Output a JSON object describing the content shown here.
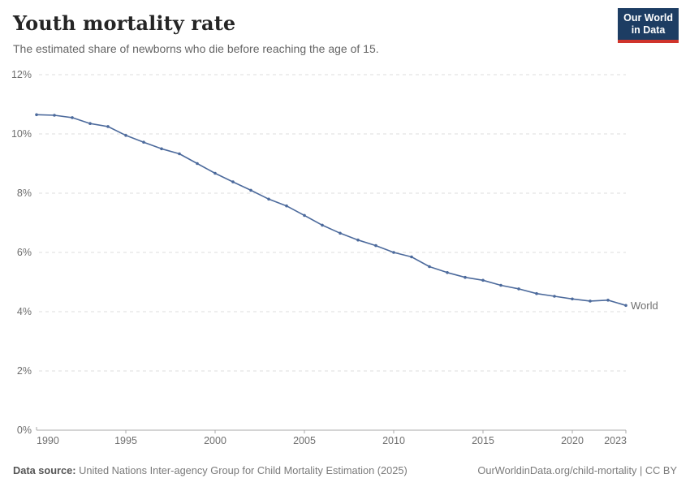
{
  "header": {
    "title": "Youth mortality rate",
    "subtitle": "The estimated share of newborns who die before reaching the age of 15."
  },
  "logo": {
    "line1": "Our World",
    "line2": "in Data",
    "background": "#1d3d63",
    "accent": "#d0342c"
  },
  "footer": {
    "source_label": "Data source:",
    "source_text": " United Nations Inter-agency Group for Child Mortality Estimation (2025)",
    "credit": "OurWorldinData.org/child-mortality | CC BY"
  },
  "chart_data": {
    "type": "line",
    "title": "Youth mortality rate",
    "xlabel": "",
    "ylabel": "",
    "xlim": [
      1990,
      2023
    ],
    "ylim": [
      0,
      12
    ],
    "yticks": [
      0,
      2,
      4,
      6,
      8,
      10,
      12
    ],
    "ytick_suffix": "%",
    "xticks": [
      1990,
      1995,
      2000,
      2005,
      2010,
      2015,
      2020,
      2023
    ],
    "grid": "horizontal-dashed",
    "legend": "end-of-line-label",
    "series": [
      {
        "name": "World",
        "color": "#4C6A9C",
        "x": [
          1990,
          1991,
          1992,
          1993,
          1994,
          1995,
          1996,
          1997,
          1998,
          1999,
          2000,
          2001,
          2002,
          2003,
          2004,
          2005,
          2006,
          2007,
          2008,
          2009,
          2010,
          2011,
          2012,
          2013,
          2014,
          2015,
          2016,
          2017,
          2018,
          2019,
          2020,
          2021,
          2022,
          2023
        ],
        "values": [
          10.65,
          10.63,
          10.55,
          10.35,
          10.25,
          9.95,
          9.72,
          9.5,
          9.33,
          9.0,
          8.67,
          8.38,
          8.1,
          7.8,
          7.57,
          7.25,
          6.92,
          6.65,
          6.42,
          6.23,
          6.0,
          5.85,
          5.52,
          5.32,
          5.16,
          5.06,
          4.89,
          4.77,
          4.61,
          4.52,
          4.43,
          4.36,
          4.39,
          4.21
        ]
      }
    ],
    "colors": {
      "line": "#4C6A9C",
      "grid": "#dddddd",
      "axis": "#a8a8a8",
      "tick_labels": "#6e6e6e"
    }
  }
}
